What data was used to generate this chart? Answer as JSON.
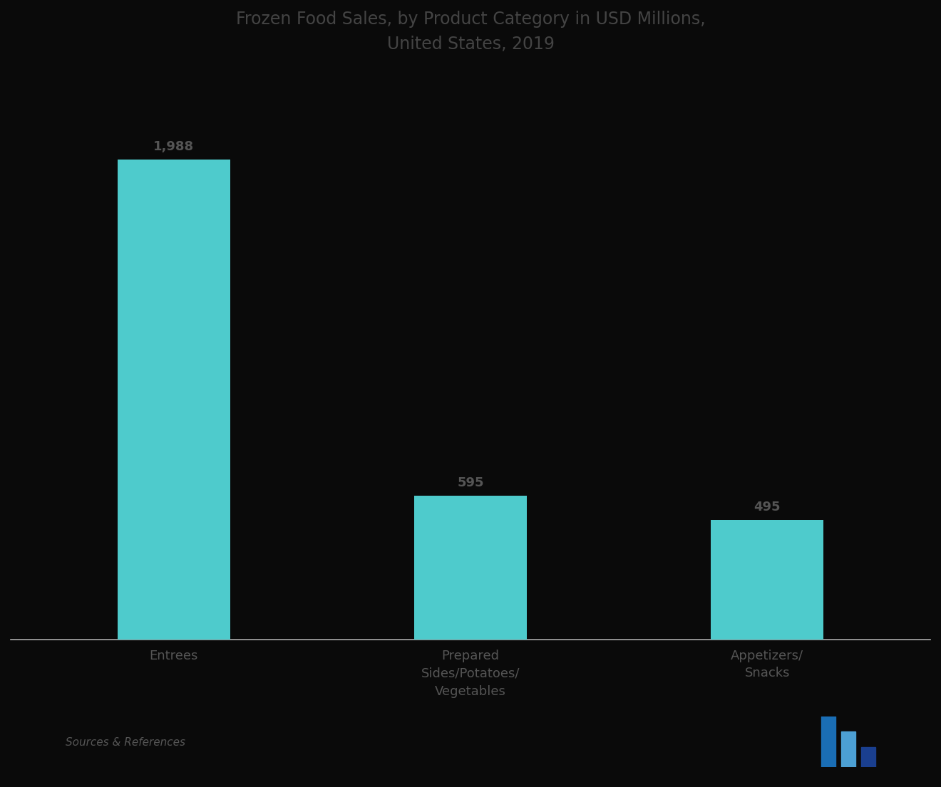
{
  "title_line1": "Frozen Food Sales, by Product Category in USD Millions,",
  "title_line2": "United States, 2019",
  "categories": [
    "Entrees",
    "Prepared\nSides/Potatoes/\nVegetables",
    "Appetizers/\nSnacks"
  ],
  "values": [
    1988,
    595,
    495
  ],
  "value_labels": [
    "1,988",
    "595",
    "495"
  ],
  "bar_color": "#4ECBCC",
  "bar_width": 0.38,
  "background_color": "#0a0a0a",
  "text_color": "#555555",
  "title_color": "#444444",
  "ylim": [
    0,
    2300
  ],
  "source_text": "Sources & References",
  "title_fontsize": 17,
  "tick_fontsize": 13,
  "value_fontsize": 13,
  "source_fontsize": 11,
  "spine_color": "#aaaaaa",
  "logo_colors": [
    "#1a6eb5",
    "#4ca0d4",
    "#1a3f8f"
  ]
}
